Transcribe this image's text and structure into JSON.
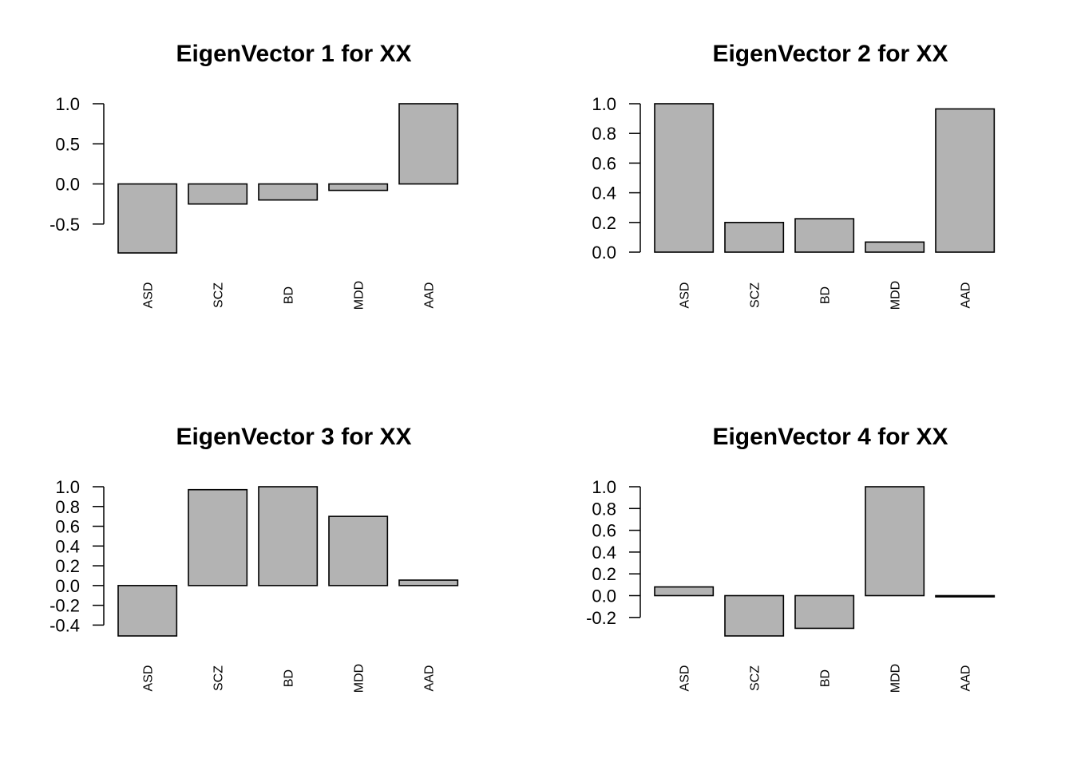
{
  "chart_data": [
    {
      "type": "bar",
      "title": "EigenVector 1 for XX",
      "categories": [
        "ASD",
        "SCZ",
        "BD",
        "MDD",
        "AAD"
      ],
      "values": [
        -0.86,
        -0.25,
        -0.2,
        -0.08,
        1.0
      ],
      "ylim": [
        -0.86,
        1.0
      ],
      "yticks": [
        -0.5,
        0.0,
        0.5,
        1.0
      ],
      "ytick_labels": [
        "-0.5",
        "0.0",
        "0.5",
        "1.0"
      ],
      "bar_color": "#b3b3b3",
      "grid": false,
      "legend": "none"
    },
    {
      "type": "bar",
      "title": "EigenVector 2 for XX",
      "categories": [
        "ASD",
        "SCZ",
        "BD",
        "MDD",
        "AAD"
      ],
      "values": [
        1.0,
        0.2,
        0.225,
        0.068,
        0.965
      ],
      "ylim": [
        0.0,
        1.0
      ],
      "yticks": [
        0.0,
        0.2,
        0.4,
        0.6,
        0.8,
        1.0
      ],
      "ytick_labels": [
        "0.0",
        "0.2",
        "0.4",
        "0.6",
        "0.8",
        "1.0"
      ],
      "bar_color": "#b3b3b3",
      "grid": false,
      "legend": "none"
    },
    {
      "type": "bar",
      "title": "EigenVector 3 for XX",
      "categories": [
        "ASD",
        "SCZ",
        "BD",
        "MDD",
        "AAD"
      ],
      "values": [
        -0.51,
        0.97,
        1.0,
        0.7,
        0.055
      ],
      "ylim": [
        -0.51,
        1.0
      ],
      "yticks": [
        -0.4,
        -0.2,
        0.0,
        0.2,
        0.4,
        0.6,
        0.8,
        1.0
      ],
      "ytick_labels": [
        "-0.4",
        "-0.2",
        "0.0",
        "0.2",
        "0.4",
        "0.6",
        "0.8",
        "1.0"
      ],
      "bar_color": "#b3b3b3",
      "grid": false,
      "legend": "none"
    },
    {
      "type": "bar",
      "title": "EigenVector 4 for XX",
      "categories": [
        "ASD",
        "SCZ",
        "BD",
        "MDD",
        "AAD"
      ],
      "values": [
        0.08,
        -0.37,
        -0.3,
        1.0,
        -0.005
      ],
      "ylim": [
        -0.37,
        1.0
      ],
      "yticks": [
        -0.2,
        0.0,
        0.2,
        0.4,
        0.6,
        0.8,
        1.0
      ],
      "ytick_labels": [
        "-0.2",
        "0.0",
        "0.2",
        "0.4",
        "0.6",
        "0.8",
        "1.0"
      ],
      "bar_color": "#b3b3b3",
      "grid": false,
      "legend": "none"
    }
  ]
}
